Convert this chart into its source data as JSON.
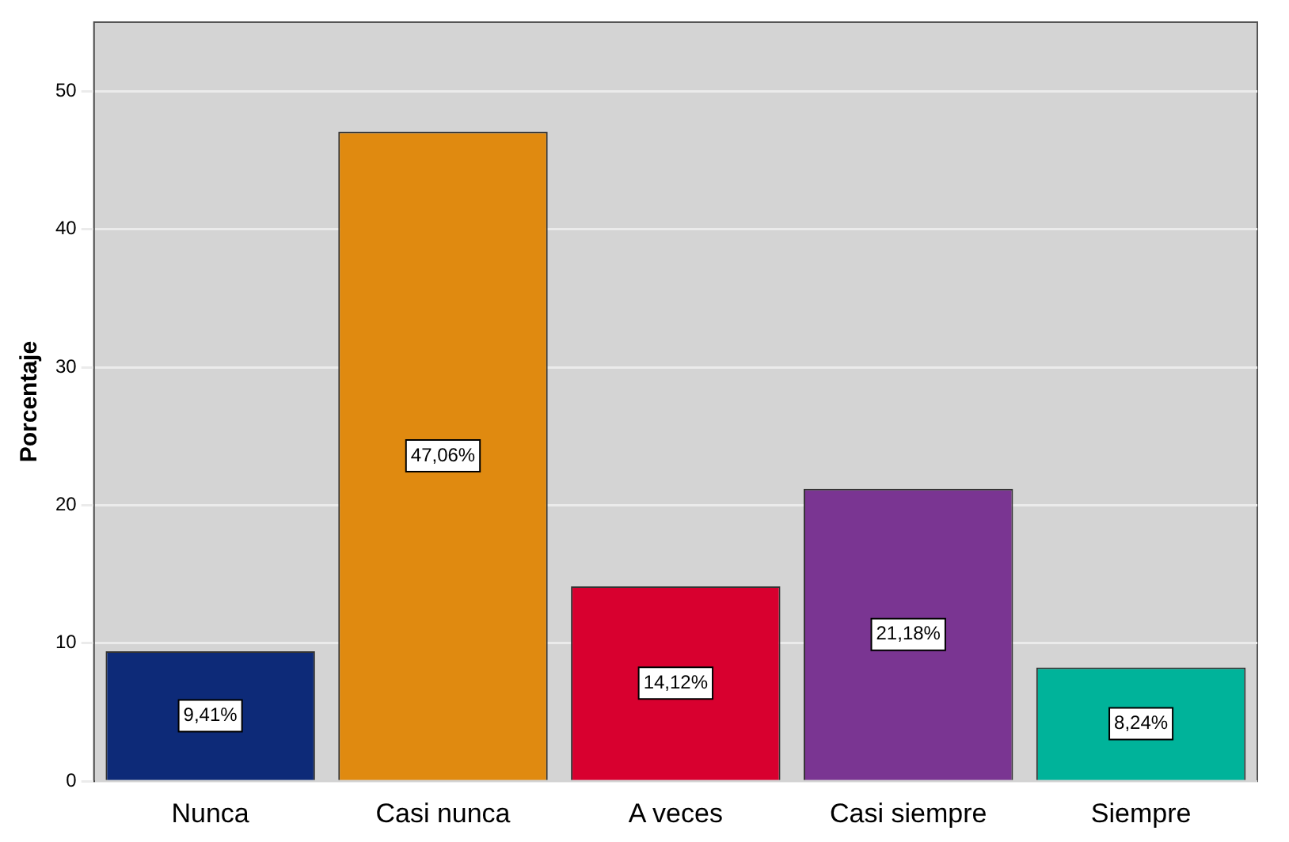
{
  "chart_data": {
    "type": "bar",
    "ylabel": "Porcentaje",
    "categories": [
      "Nunca",
      "Casi nunca",
      "A veces",
      "Casi siempre",
      "Siempre"
    ],
    "values": [
      9.41,
      47.06,
      14.12,
      21.18,
      8.24
    ],
    "colors": [
      "#0d2a78",
      "#e08a10",
      "#d8002f",
      "#7a3592",
      "#00b39a"
    ],
    "value_labels": [
      "9,41%",
      "47,06%",
      "14,12%",
      "21,18%",
      "8,24%"
    ],
    "ylim": [
      0,
      55
    ],
    "yticks": [
      0,
      10,
      20,
      30,
      40,
      50
    ],
    "grid": "y",
    "legend": false
  }
}
